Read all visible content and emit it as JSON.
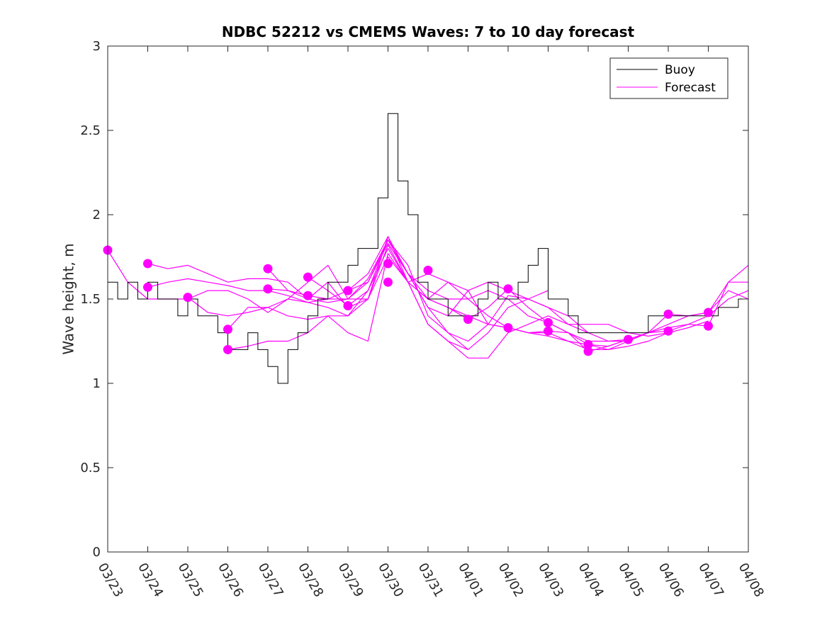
{
  "chart_data": {
    "type": "line",
    "title": "NDBC 52212 vs CMEMS Waves: 7 to 10 day forecast",
    "xlabel": "",
    "ylabel": "Wave height, m",
    "xlim": [
      0,
      16
    ],
    "ylim": [
      0,
      3
    ],
    "x_tick_labels": [
      "03/23",
      "03/24",
      "03/25",
      "03/26",
      "03/27",
      "03/28",
      "03/29",
      "03/30",
      "03/31",
      "04/01",
      "04/02",
      "04/03",
      "04/04",
      "04/05",
      "04/06",
      "04/07",
      "04/08"
    ],
    "y_ticks": [
      0,
      0.5,
      1,
      1.5,
      2,
      2.5,
      3
    ],
    "y_tick_labels": [
      "0",
      "0.5",
      "1",
      "1.5",
      "2",
      "2.5",
      "3"
    ],
    "legend": {
      "position": "top-right",
      "entries": [
        "Buoy",
        "Forecast"
      ]
    },
    "colors": {
      "buoy": "#000000",
      "forecast": "#ff00ff"
    },
    "buoy": {
      "name": "Buoy",
      "x": [
        0,
        0.25,
        0.5,
        0.75,
        1.0,
        1.25,
        1.5,
        1.75,
        2.0,
        2.25,
        2.5,
        2.75,
        3.0,
        3.25,
        3.5,
        3.75,
        4.0,
        4.25,
        4.5,
        4.75,
        5.0,
        5.25,
        5.5,
        5.75,
        6.0,
        6.25,
        6.5,
        6.75,
        7.0,
        7.25,
        7.5,
        7.75,
        8.0,
        8.25,
        8.5,
        8.75,
        9.0,
        9.25,
        9.5,
        9.75,
        10.0,
        10.25,
        10.5,
        10.75,
        11.0,
        11.25,
        11.5,
        11.75,
        12.0,
        12.25,
        12.5,
        12.75,
        13.0,
        13.25,
        13.5,
        13.75,
        14.0,
        14.25,
        14.5,
        14.75,
        15.0,
        15.25,
        15.5,
        15.75,
        16.0
      ],
      "values": [
        1.6,
        1.5,
        1.6,
        1.5,
        1.6,
        1.5,
        1.5,
        1.4,
        1.5,
        1.4,
        1.4,
        1.3,
        1.2,
        1.2,
        1.3,
        1.2,
        1.1,
        1.0,
        1.2,
        1.3,
        1.4,
        1.5,
        1.6,
        1.6,
        1.7,
        1.8,
        1.8,
        2.1,
        2.6,
        2.2,
        2.0,
        1.6,
        1.5,
        1.5,
        1.4,
        1.4,
        1.4,
        1.5,
        1.6,
        1.5,
        1.5,
        1.6,
        1.7,
        1.8,
        1.5,
        1.5,
        1.4,
        1.3,
        1.3,
        1.3,
        1.3,
        1.3,
        1.3,
        1.3,
        1.4,
        1.4,
        1.4,
        1.4,
        1.4,
        1.4,
        1.4,
        1.45,
        1.45,
        1.5,
        1.5
      ]
    },
    "forecasts": [
      {
        "name": "Forecast",
        "x": [
          0,
          0.5,
          1,
          1.5,
          2,
          2.5,
          3,
          3.5,
          4,
          4.5,
          5,
          5.5,
          6,
          6.5,
          7,
          7.5,
          8,
          8.5,
          9
        ],
        "values": [
          1.79,
          1.6,
          1.5,
          1.5,
          1.5,
          1.55,
          1.55,
          1.5,
          1.42,
          1.5,
          1.48,
          1.5,
          1.5,
          1.6,
          1.85,
          1.65,
          1.45,
          1.3,
          1.2
        ]
      },
      {
        "name": "Forecast",
        "x": [
          1,
          1.5,
          2,
          2.5,
          3,
          3.5,
          4,
          4.5,
          5,
          5.5,
          6,
          6.5,
          7,
          7.5,
          8,
          8.5,
          9,
          9.5,
          10,
          10.5,
          11
        ],
        "values": [
          1.71,
          1.68,
          1.7,
          1.65,
          1.6,
          1.62,
          1.62,
          1.6,
          1.5,
          1.48,
          1.5,
          1.62,
          1.85,
          1.7,
          1.4,
          1.3,
          1.25,
          1.35,
          1.52,
          1.5,
          1.55
        ]
      },
      {
        "name": "Forecast",
        "x": [
          1,
          1.5,
          2,
          2.5,
          3,
          3.5,
          4,
          4.5,
          5,
          5.5,
          6,
          6.5,
          7,
          7.5,
          8,
          8.5,
          9,
          9.5,
          10,
          10.5,
          11,
          11.5,
          12
        ],
        "values": [
          1.57,
          1.6,
          1.62,
          1.6,
          1.58,
          1.55,
          1.55,
          1.52,
          1.48,
          1.45,
          1.4,
          1.5,
          1.82,
          1.6,
          1.35,
          1.25,
          1.15,
          1.15,
          1.3,
          1.35,
          1.4,
          1.35,
          1.3
        ]
      },
      {
        "name": "Forecast",
        "x": [
          2,
          2.5,
          3,
          3.5,
          4,
          4.5,
          5,
          5.5,
          6,
          6.5,
          7,
          7.5,
          8,
          8.5,
          9,
          9.5,
          10,
          10.5,
          11,
          11.5,
          12,
          12.5,
          13
        ],
        "values": [
          1.51,
          1.42,
          1.4,
          1.42,
          1.45,
          1.4,
          1.38,
          1.4,
          1.4,
          1.55,
          1.8,
          1.6,
          1.35,
          1.25,
          1.2,
          1.3,
          1.45,
          1.5,
          1.45,
          1.4,
          1.3,
          1.25,
          1.25
        ]
      },
      {
        "name": "Forecast",
        "x": [
          3,
          3.5,
          4,
          4.5,
          5,
          5.5,
          6,
          6.5,
          7,
          7.5,
          8,
          8.5,
          9,
          9.5,
          10,
          10.5,
          11,
          11.5,
          12,
          12.5,
          13,
          13.5,
          14
        ],
        "values": [
          1.32,
          1.45,
          1.45,
          1.5,
          1.6,
          1.7,
          1.5,
          1.5,
          1.87,
          1.65,
          1.45,
          1.4,
          1.55,
          1.6,
          1.55,
          1.5,
          1.45,
          1.35,
          1.35,
          1.35,
          1.3,
          1.28,
          1.3
        ]
      },
      {
        "name": "Forecast",
        "x": [
          3,
          3.5,
          4,
          4.5,
          5,
          5.5,
          6,
          6.5,
          7,
          7.5,
          8,
          8.5,
          9,
          9.5,
          10,
          10.5,
          11,
          11.5,
          12,
          12.5,
          13,
          13.5,
          14,
          14.5,
          15
        ],
        "values": [
          1.2,
          1.22,
          1.25,
          1.25,
          1.3,
          1.4,
          1.3,
          1.25,
          1.77,
          1.6,
          1.5,
          1.6,
          1.55,
          1.35,
          1.33,
          1.3,
          1.28,
          1.25,
          1.23,
          1.2,
          1.22,
          1.25,
          1.3,
          1.33,
          1.37
        ]
      },
      {
        "name": "Forecast",
        "x": [
          4,
          4.5,
          5,
          5.5,
          6,
          6.5,
          7,
          7.5,
          8,
          8.5,
          9,
          9.5,
          10,
          10.5,
          11,
          11.5,
          12,
          12.5,
          13,
          13.5,
          14,
          14.5,
          15,
          15.5,
          16
        ],
        "values": [
          1.68,
          1.55,
          1.5,
          1.6,
          1.45,
          1.5,
          1.75,
          1.6,
          1.65,
          1.6,
          1.5,
          1.4,
          1.33,
          1.3,
          1.3,
          1.25,
          1.2,
          1.2,
          1.25,
          1.3,
          1.35,
          1.4,
          1.42,
          1.55,
          1.5
        ]
      },
      {
        "name": "Forecast",
        "x": [
          4,
          4.5,
          5,
          5.5,
          6,
          6.5,
          7,
          7.5,
          8,
          8.5,
          9,
          9.5,
          10,
          10.5,
          11,
          11.5,
          12,
          12.5,
          13,
          13.5,
          14,
          14.5,
          15,
          15.5,
          16
        ],
        "values": [
          1.56,
          1.55,
          1.52,
          1.5,
          1.55,
          1.6,
          1.83,
          1.65,
          1.55,
          1.5,
          1.5,
          1.55,
          1.5,
          1.4,
          1.36,
          1.3,
          1.23,
          1.22,
          1.26,
          1.3,
          1.33,
          1.35,
          1.4,
          1.5,
          1.55
        ]
      },
      {
        "name": "Forecast",
        "x": [
          5,
          5.5,
          6,
          6.5,
          7,
          7.5,
          8,
          8.5,
          9,
          9.5,
          10,
          10.5,
          11,
          11.5,
          12,
          12.5,
          13,
          13.5,
          14,
          14.5,
          15,
          15.5,
          16
        ],
        "values": [
          1.63,
          1.55,
          1.46,
          1.55,
          1.85,
          1.65,
          1.5,
          1.45,
          1.38,
          1.45,
          1.56,
          1.45,
          1.36,
          1.3,
          1.19,
          1.22,
          1.26,
          1.3,
          1.41,
          1.4,
          1.42,
          1.6,
          1.6
        ]
      },
      {
        "name": "Forecast",
        "x": [
          6,
          6.5,
          7,
          7.5,
          8,
          8.5,
          9,
          9.5,
          10,
          10.5,
          11,
          11.5,
          12,
          12.5,
          13,
          13.5,
          14,
          14.5,
          15,
          15.5,
          16
        ],
        "values": [
          1.55,
          1.65,
          1.87,
          1.6,
          1.5,
          1.45,
          1.4,
          1.35,
          1.33,
          1.3,
          1.31,
          1.3,
          1.25,
          1.25,
          1.26,
          1.3,
          1.31,
          1.35,
          1.34,
          1.6,
          1.7
        ]
      }
    ],
    "forecast_markers": [
      {
        "x": 0.0,
        "y": 1.79
      },
      {
        "x": 1.0,
        "y": 1.71
      },
      {
        "x": 1.0,
        "y": 1.57
      },
      {
        "x": 2.0,
        "y": 1.51
      },
      {
        "x": 3.0,
        "y": 1.32
      },
      {
        "x": 3.0,
        "y": 1.2
      },
      {
        "x": 4.0,
        "y": 1.68
      },
      {
        "x": 4.0,
        "y": 1.56
      },
      {
        "x": 5.0,
        "y": 1.63
      },
      {
        "x": 5.0,
        "y": 1.52
      },
      {
        "x": 6.0,
        "y": 1.55
      },
      {
        "x": 6.0,
        "y": 1.46
      },
      {
        "x": 7.0,
        "y": 1.71
      },
      {
        "x": 7.0,
        "y": 1.6
      },
      {
        "x": 8.0,
        "y": 1.67
      },
      {
        "x": 9.0,
        "y": 1.38
      },
      {
        "x": 10.0,
        "y": 1.56
      },
      {
        "x": 10.0,
        "y": 1.33
      },
      {
        "x": 11.0,
        "y": 1.36
      },
      {
        "x": 11.0,
        "y": 1.31
      },
      {
        "x": 12.0,
        "y": 1.23
      },
      {
        "x": 12.0,
        "y": 1.19
      },
      {
        "x": 13.0,
        "y": 1.26
      },
      {
        "x": 14.0,
        "y": 1.41
      },
      {
        "x": 14.0,
        "y": 1.31
      },
      {
        "x": 15.0,
        "y": 1.42
      },
      {
        "x": 15.0,
        "y": 1.34
      }
    ]
  }
}
